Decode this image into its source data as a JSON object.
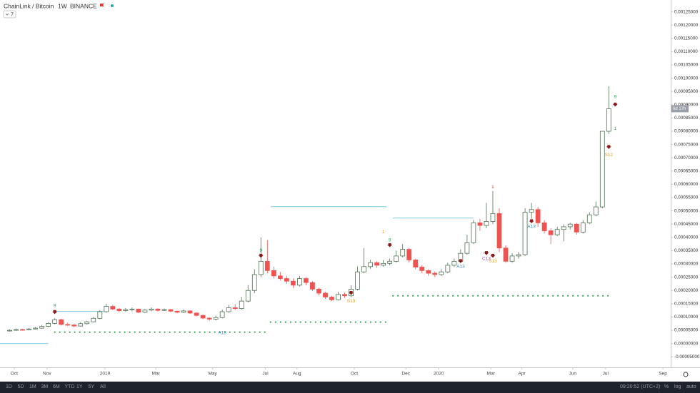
{
  "chart_data": {
    "type": "candlestick",
    "title": "ChainLink / Bitcoin",
    "interval": "1W",
    "exchange": "BINANCE",
    "indicator_toggle": "7",
    "countdown": "6d 17h",
    "up_color": "#ffffff",
    "up_border": "#4f6f52",
    "down_color": "#ef5350",
    "open": [
      4.8e-05,
      5e-05,
      5.3e-05,
      5.2e-05,
      5.5e-05,
      5.8e-05,
      6.5e-05,
      7.6e-05,
      9e-05,
      7.2e-05,
      7e-05,
      6.6e-05,
      7.5e-05,
      8.2e-05,
      9.5e-05,
      0.00012,
      0.00014,
      0.00013,
      0.000124,
      0.000128,
      0.00013,
      0.000118,
      0.000126,
      0.00013,
      0.000125,
      0.000128,
      0.000122,
      0.000118,
      0.000123,
      0.000115,
      0.000106,
      9.6e-05,
      9.2e-05,
      9.8e-05,
      0.00012,
      0.000135,
      0.000132,
      0.00016,
      0.0002,
      0.00026,
      0.00031,
      0.000275,
      0.000255,
      0.000245,
      0.000235,
      0.00022,
      0.000245,
      0.00023,
      0.000205,
      0.00019,
      0.000175,
      0.000165,
      0.000185,
      0.00018,
      0.000205,
      0.00027,
      0.00029,
      0.000305,
      0.000295,
      0.000302,
      0.00031,
      0.00033,
      0.000355,
      0.000315,
      0.000288,
      0.000275,
      0.000265,
      0.00026,
      0.00027,
      0.000295,
      0.00031,
      0.00034,
      0.00038,
      0.000455,
      0.000445,
      0.00046,
      0.00049,
      0.00036,
      0.00031,
      0.00033,
      0.000335,
      0.000495,
      0.000505,
      0.000455,
      0.000425,
      0.00041,
      0.00043,
      0.00044,
      0.00045,
      0.00042,
      0.000455,
      0.000485,
      0.000515,
      0.0008
    ],
    "high": [
      5.4e-05,
      5.6e-05,
      5.6e-05,
      5.8e-05,
      6.2e-05,
      7e-05,
      8e-05,
      9.6e-05,
      9.3e-05,
      7.8e-05,
      7.4e-05,
      8e-05,
      8.6e-05,
      0.0001,
      0.000126,
      0.00015,
      0.000146,
      0.000134,
      0.000134,
      0.000136,
      0.000132,
      0.00013,
      0.000136,
      0.000133,
      0.000132,
      0.00013,
      0.000124,
      0.000128,
      0.000125,
      0.000118,
      0.000109,
      9.8e-05,
      0.000105,
      0.000128,
      0.000145,
      0.000148,
      0.000175,
      0.00022,
      0.00028,
      0.0004,
      0.00039,
      0.00029,
      0.00027,
      0.000255,
      0.000245,
      0.000255,
      0.00025,
      0.000235,
      0.00021,
      0.000195,
      0.00018,
      0.000195,
      0.000192,
      0.00022,
      0.00029,
      0.00036,
      0.000315,
      0.00031,
      0.000315,
      0.00032,
      0.00035,
      0.000375,
      0.00036,
      0.00032,
      0.000295,
      0.00028,
      0.000272,
      0.00028,
      0.000305,
      0.00032,
      0.000355,
      0.00041,
      0.000465,
      0.00047,
      0.00053,
      0.000575,
      0.00051,
      0.00037,
      0.00034,
      0.000345,
      0.00051,
      0.00053,
      0.000515,
      0.000465,
      0.000435,
      0.00044,
      0.00045,
      0.000455,
      0.000455,
      0.000465,
      0.000495,
      0.000535,
      0.0008,
      0.00097
    ],
    "low": [
      4.5e-05,
      4.8e-05,
      4.9e-05,
      5e-05,
      5.3e-05,
      5.6e-05,
      6.2e-05,
      7.3e-05,
      6.8e-05,
      6.6e-05,
      6.2e-05,
      6.4e-05,
      7.2e-05,
      8e-05,
      9.2e-05,
      0.000116,
      0.000126,
      0.000118,
      0.00012,
      0.000122,
      0.000114,
      0.000115,
      0.000122,
      0.00012,
      0.000122,
      0.000118,
      0.000114,
      0.000115,
      0.000112,
      0.000102,
      9.2e-05,
      8.6e-05,
      8.8e-05,
      9.5e-05,
      0.000116,
      0.000126,
      0.000128,
      0.000155,
      0.00019,
      0.00025,
      0.000265,
      0.000245,
      0.000238,
      0.000225,
      0.00021,
      0.000215,
      0.00022,
      0.000198,
      0.000182,
      0.000168,
      0.00016,
      0.000162,
      0.000172,
      0.000175,
      0.0002,
      0.000265,
      0.000282,
      0.000285,
      0.00029,
      0.000295,
      0.000305,
      0.000325,
      0.000305,
      0.00028,
      0.000265,
      0.000255,
      0.00025,
      0.000255,
      0.000265,
      0.000288,
      0.000305,
      0.000335,
      0.000375,
      0.000425,
      0.000435,
      0.00045,
      0.000345,
      0.000305,
      0.000305,
      0.00032,
      0.00033,
      0.00047,
      0.00044,
      0.000415,
      0.000375,
      0.000405,
      0.000385,
      0.00043,
      0.00041,
      0.000415,
      0.00045,
      0.00048,
      0.00051,
      0.00079
    ],
    "close": [
      5e-05,
      5.3e-05,
      5.2e-05,
      5.5e-05,
      5.8e-05,
      6.5e-05,
      7.6e-05,
      9e-05,
      7.2e-05,
      7e-05,
      6.6e-05,
      7.5e-05,
      8.2e-05,
      9.5e-05,
      0.00012,
      0.00014,
      0.00013,
      0.000124,
      0.000128,
      0.00013,
      0.000118,
      0.000126,
      0.00013,
      0.000125,
      0.000128,
      0.000122,
      0.000118,
      0.000123,
      0.000115,
      0.000106,
      9.6e-05,
      9.2e-05,
      9.8e-05,
      0.00012,
      0.000135,
      0.000132,
      0.00016,
      0.0002,
      0.00026,
      0.00031,
      0.000275,
      0.000255,
      0.000245,
      0.000235,
      0.00022,
      0.000245,
      0.00023,
      0.000205,
      0.00019,
      0.000175,
      0.000165,
      0.000185,
      0.00018,
      0.000205,
      0.00027,
      0.00029,
      0.000305,
      0.000295,
      0.000302,
      0.00031,
      0.00033,
      0.000355,
      0.000315,
      0.000288,
      0.000275,
      0.000265,
      0.00026,
      0.00027,
      0.000295,
      0.00031,
      0.00034,
      0.00038,
      0.000455,
      0.000445,
      0.00046,
      0.00049,
      0.00036,
      0.00031,
      0.00033,
      0.000335,
      0.000495,
      0.000505,
      0.000455,
      0.000425,
      0.00041,
      0.00043,
      0.00044,
      0.00045,
      0.00042,
      0.000455,
      0.000485,
      0.000515,
      0.0008,
      0.000885
    ],
    "xlim": [
      -1.5,
      102.5
    ],
    "xticks": [
      {
        "value": 0.7,
        "label": "Oct"
      },
      {
        "value": 5.8,
        "label": "Nov"
      },
      {
        "value": 14.8,
        "label": "2019"
      },
      {
        "value": 22.7,
        "label": "Mar"
      },
      {
        "value": 31.5,
        "label": "May"
      },
      {
        "value": 39.7,
        "label": "Jul"
      },
      {
        "value": 44.6,
        "label": "Aug"
      },
      {
        "value": 53.5,
        "label": "Oct"
      },
      {
        "value": 61.5,
        "label": "Dec"
      },
      {
        "value": 66.6,
        "label": "2020"
      },
      {
        "value": 74.7,
        "label": "Mar"
      },
      {
        "value": 79.5,
        "label": "Apr"
      },
      {
        "value": 87.4,
        "label": "Jun"
      },
      {
        "value": 92.5,
        "label": "Jul"
      },
      {
        "value": 101.4,
        "label": "Sep"
      }
    ],
    "ylim": [
      -6e-05,
      0.0013
    ],
    "yticks": [
      {
        "value": -5e-05,
        "label": "-0.00005000"
      },
      {
        "value": 0,
        "label": "0.00000000"
      },
      {
        "value": 5e-05,
        "label": "0.00005000"
      },
      {
        "value": 0.0001,
        "label": "0.00010000"
      },
      {
        "value": 0.00015,
        "label": "0.00015000"
      },
      {
        "value": 0.0002,
        "label": "0.00020000"
      },
      {
        "value": 0.00025,
        "label": "0.00025000"
      },
      {
        "value": 0.0003,
        "label": "0.00030000"
      },
      {
        "value": 0.00035,
        "label": "0.00035000"
      },
      {
        "value": 0.0004,
        "label": "0.00040000"
      },
      {
        "value": 0.00045,
        "label": "0.00045000"
      },
      {
        "value": 0.0005,
        "label": "0.00050000"
      },
      {
        "value": 0.00055,
        "label": "0.00055000"
      },
      {
        "value": 0.0006,
        "label": "0.00060000"
      },
      {
        "value": 0.00065,
        "label": "0.00065000"
      },
      {
        "value": 0.0007,
        "label": "0.00070000"
      },
      {
        "value": 0.00075,
        "label": "0.00075000"
      },
      {
        "value": 0.0008,
        "label": "0.00080000"
      },
      {
        "value": 0.00085,
        "label": "0.00085000"
      },
      {
        "value": 0.0009,
        "label": "0.00090000"
      },
      {
        "value": 0.00095,
        "label": "0.00095000"
      },
      {
        "value": 0.001,
        "label": "0.00100000"
      },
      {
        "value": 0.00105,
        "label": "0.00105000"
      },
      {
        "value": 0.0011,
        "label": "0.00110000"
      },
      {
        "value": 0.00115,
        "label": "0.00115000"
      },
      {
        "value": 0.0012,
        "label": "0.00120000"
      },
      {
        "value": 0.00125,
        "label": "0.00125000"
      }
    ],
    "grid": false,
    "levels": [
      {
        "value": 0,
        "from": -1.5,
        "to": 6,
        "style": "solid",
        "color": "#7ec8e3"
      },
      {
        "value": 0.000121,
        "from": 7,
        "to": 15,
        "style": "solid",
        "color": "#7ec8e3"
      },
      {
        "value": 0.000516,
        "from": 40.5,
        "to": 58.5,
        "style": "solid",
        "color": "#7ec8e3"
      },
      {
        "value": 0.000473,
        "from": 59.5,
        "to": 72,
        "style": "solid",
        "color": "#7ec8e3"
      },
      {
        "value": 4.3e-05,
        "from": 7,
        "to": 40,
        "style": "dotted",
        "color": "#2e9e4f"
      },
      {
        "value": 8.1e-05,
        "from": 40.5,
        "to": 59,
        "style": "dotted",
        "color": "#2e9e4f"
      },
      {
        "value": 0.00018,
        "from": 59.5,
        "to": 93.5,
        "style": "dotted",
        "color": "#2e9e4f"
      }
    ],
    "markers": [
      {
        "x": 7,
        "y": 0.000118
      },
      {
        "x": 39,
        "y": 0.00033
      },
      {
        "x": 53,
        "y": 0.00019
      },
      {
        "x": 59,
        "y": 0.00037
      },
      {
        "x": 70,
        "y": 0.00031
      },
      {
        "x": 74,
        "y": 0.00034
      },
      {
        "x": 75,
        "y": 0.00033
      },
      {
        "x": 81,
        "y": 0.00046
      },
      {
        "x": 94,
        "y": 0.0009
      },
      {
        "x": 93,
        "y": 0.00074
      }
    ],
    "annotations": [
      {
        "text": "9",
        "x": 7,
        "y": 0.000142,
        "color": "#26a65b"
      },
      {
        "text": "A13",
        "x": 33,
        "y": 4e-05,
        "color": "#3d8fd1"
      },
      {
        "text": "9",
        "x": 39,
        "y": 0.00035,
        "color": "#26a65b"
      },
      {
        "text": "S13",
        "x": 53,
        "y": 0.00016,
        "color": "#e0a020"
      },
      {
        "text": "1",
        "x": 58,
        "y": 0.00042,
        "color": "#e0a020"
      },
      {
        "text": "9",
        "x": 59,
        "y": 0.00039,
        "color": "#26a65b"
      },
      {
        "text": "A13",
        "x": 70,
        "y": 0.00029,
        "color": "#3d8fd1"
      },
      {
        "text": "C13",
        "x": 74,
        "y": 0.00032,
        "color": "#9c4fc0"
      },
      {
        "text": "S13",
        "x": 75,
        "y": 0.00031,
        "color": "#e0a020"
      },
      {
        "text": "1",
        "x": 75,
        "y": 0.00059,
        "color": "#d84040"
      },
      {
        "text": "A13",
        "x": 81,
        "y": 0.00044,
        "color": "#3d8fd1"
      },
      {
        "text": "9",
        "x": 94,
        "y": 0.00093,
        "color": "#26a65b"
      },
      {
        "text": "1",
        "x": 94,
        "y": 0.00081,
        "color": "#26a65b"
      },
      {
        "text": "S12",
        "x": 93,
        "y": 0.00071,
        "color": "#e0a020"
      }
    ]
  },
  "toolbar": {
    "ranges": [
      "1D",
      "5D",
      "1M",
      "3M",
      "6M",
      "YTD",
      "1Y",
      "5Y",
      "All"
    ],
    "time": "09:20:52 (UTC+2)",
    "options": [
      "%",
      "log",
      "auto"
    ]
  }
}
